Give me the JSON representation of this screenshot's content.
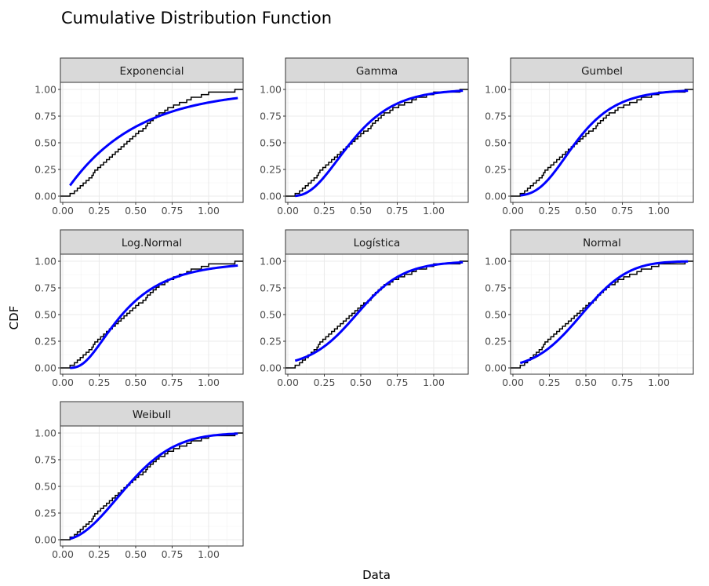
{
  "chart_data": {
    "type": "line",
    "title": "Cumulative Distribution Function",
    "xlabel": "Data",
    "ylabel": "CDF",
    "xlim": [
      -0.017,
      1.237
    ],
    "ylim": [
      -0.06,
      1.06
    ],
    "x_ticks": [
      "0.00",
      "0.25",
      "0.50",
      "0.75",
      "1.00"
    ],
    "y_ticks": [
      "0.00",
      "0.25",
      "0.50",
      "0.75",
      "1.00"
    ],
    "x_tick_values": [
      0,
      0.25,
      0.5,
      0.75,
      1
    ],
    "y_tick_values": [
      0,
      0.25,
      0.5,
      0.75,
      1
    ],
    "grid": true,
    "empirical_data": [
      0.05,
      0.08,
      0.1,
      0.12,
      0.14,
      0.16,
      0.18,
      0.2,
      0.21,
      0.22,
      0.24,
      0.26,
      0.28,
      0.3,
      0.32,
      0.34,
      0.36,
      0.38,
      0.4,
      0.42,
      0.44,
      0.46,
      0.48,
      0.5,
      0.52,
      0.55,
      0.57,
      0.58,
      0.6,
      0.62,
      0.64,
      0.66,
      0.7,
      0.72,
      0.76,
      0.8,
      0.85,
      0.88,
      0.95,
      1.0,
      1.18
    ],
    "fitted_range": [
      0.05,
      1.2
    ],
    "colors": {
      "empirical": "#000000",
      "fitted": "#0000ff"
    },
    "panels": [
      {
        "name": "Exponencial",
        "dist": "exp",
        "params": {
          "rate": 2.1
        }
      },
      {
        "name": "Gamma",
        "dist": "gamma",
        "params": {
          "shape": 3.6,
          "rate": 7.6
        }
      },
      {
        "name": "Gumbel",
        "dist": "gumbel",
        "params": {
          "mu": 0.36,
          "beta": 0.19
        }
      },
      {
        "name": "Log.Normal",
        "dist": "lnorm",
        "params": {
          "meanlog": -0.9,
          "sdlog": 0.62
        }
      },
      {
        "name": "Logística",
        "dist": "logis",
        "params": {
          "location": 0.47,
          "scale": 0.16
        }
      },
      {
        "name": "Normal",
        "dist": "norm",
        "params": {
          "mean": 0.47,
          "sd": 0.25
        }
      },
      {
        "name": "Weibull",
        "dist": "weibull",
        "params": {
          "shape": 2.0,
          "scale": 0.53
        }
      }
    ]
  }
}
